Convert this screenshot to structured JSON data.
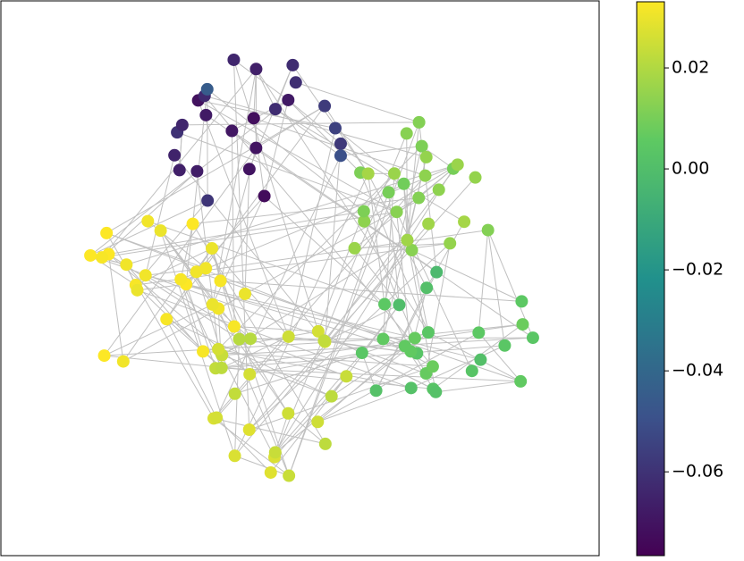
{
  "chart_data": {
    "type": "network",
    "colormap": "viridis",
    "clim": [
      -0.0766,
      0.0331
    ],
    "cticks": [
      {
        "value": 0.02,
        "label": "0.02"
      },
      {
        "value": 0.0,
        "label": "0.00"
      },
      {
        "value": -0.02,
        "label": "−0.02"
      },
      {
        "value": -0.04,
        "label": "−0.04"
      },
      {
        "value": -0.06,
        "label": "−0.06"
      }
    ],
    "edge_color": "#c0c0c0",
    "nodes": [
      -0.072,
      -0.068,
      -0.065,
      -0.07,
      -0.062,
      -0.066,
      -0.06,
      -0.069,
      -0.064,
      -0.058,
      -0.071,
      -0.063,
      -0.067,
      -0.061,
      -0.059,
      -0.066,
      -0.07,
      -0.055,
      -0.064,
      -0.068,
      -0.062,
      -0.05,
      -0.045,
      -0.057,
      -0.073,
      0.012,
      0.015,
      0.01,
      0.017,
      0.013,
      0.011,
      0.016,
      0.014,
      0.018,
      0.012,
      0.009,
      0.015,
      0.013,
      0.017,
      0.011,
      0.014,
      0.016,
      0.012,
      0.01,
      0.015,
      0.013,
      0.018,
      0.011,
      0.014,
      0.016,
      0.004,
      0.002,
      0.006,
      0.001,
      0.005,
      0.003,
      0.007,
      0.0,
      0.004,
      0.006,
      0.002,
      0.005,
      0.008,
      0.003,
      0.001,
      0.006,
      0.004,
      0.007,
      0.002,
      0.005,
      0.003,
      0.006,
      0.004,
      -0.002,
      0.008,
      0.024,
      0.026,
      0.022,
      0.027,
      0.025,
      0.023,
      0.028,
      0.021,
      0.025,
      0.026,
      0.024,
      0.022,
      0.027,
      0.023,
      0.025,
      0.028,
      0.024,
      0.026,
      0.021,
      0.025,
      0.027,
      0.023,
      0.026,
      0.024,
      0.022,
      0.031,
      0.033,
      0.03,
      0.032,
      0.031,
      0.033,
      0.03,
      0.032,
      0.031,
      0.033,
      0.032,
      0.03,
      0.031,
      0.033,
      0.032,
      0.031,
      0.03,
      0.033,
      0.032,
      0.031,
      0.032,
      0.03,
      0.033,
      0.031,
      0.032
    ]
  }
}
